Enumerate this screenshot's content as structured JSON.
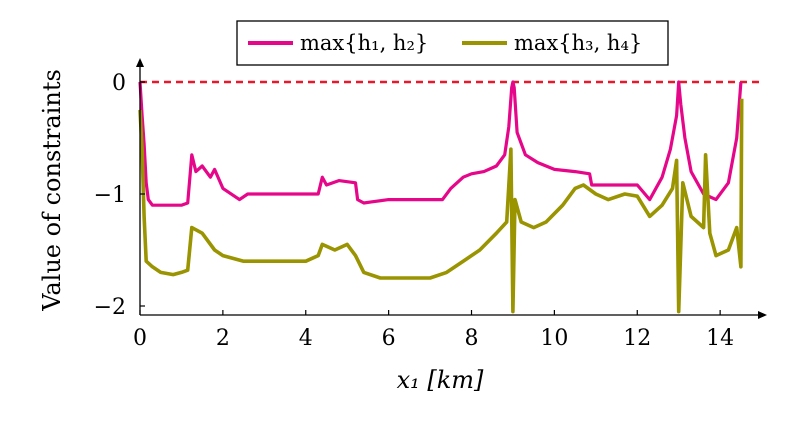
{
  "chart_data": {
    "type": "line",
    "xlabel": "x₁ [km]",
    "ylabel": "Value of constraints",
    "xlim": [
      0,
      15
    ],
    "ylim": [
      -2.05,
      0.12
    ],
    "xticks": [
      0,
      2,
      4,
      6,
      8,
      10,
      12,
      14
    ],
    "yticks": [
      0,
      -1,
      -2
    ],
    "ytick_labels": [
      "0",
      "−1",
      "−2"
    ],
    "legend_position": "top-center",
    "reference_line": {
      "y": 0,
      "style": "dashed",
      "color": "#e8192c"
    },
    "series": [
      {
        "name": "max{h₁, h₂}",
        "color": "#e6068a",
        "points": [
          [
            0.0,
            0.0
          ],
          [
            0.05,
            -0.3
          ],
          [
            0.1,
            -0.55
          ],
          [
            0.15,
            -0.9
          ],
          [
            0.2,
            -1.05
          ],
          [
            0.3,
            -1.1
          ],
          [
            0.5,
            -1.1
          ],
          [
            0.8,
            -1.1
          ],
          [
            1.0,
            -1.1
          ],
          [
            1.15,
            -1.08
          ],
          [
            1.25,
            -0.65
          ],
          [
            1.35,
            -0.8
          ],
          [
            1.5,
            -0.75
          ],
          [
            1.7,
            -0.85
          ],
          [
            1.8,
            -0.78
          ],
          [
            2.0,
            -0.95
          ],
          [
            2.4,
            -1.05
          ],
          [
            2.6,
            -1.0
          ],
          [
            3.0,
            -1.0
          ],
          [
            3.5,
            -1.0
          ],
          [
            4.0,
            -1.0
          ],
          [
            4.3,
            -1.0
          ],
          [
            4.4,
            -0.85
          ],
          [
            4.5,
            -0.92
          ],
          [
            4.8,
            -0.88
          ],
          [
            5.2,
            -0.9
          ],
          [
            5.25,
            -1.05
          ],
          [
            5.4,
            -1.08
          ],
          [
            5.6,
            -1.07
          ],
          [
            6.0,
            -1.05
          ],
          [
            6.5,
            -1.05
          ],
          [
            7.0,
            -1.05
          ],
          [
            7.3,
            -1.05
          ],
          [
            7.5,
            -0.95
          ],
          [
            7.8,
            -0.85
          ],
          [
            8.0,
            -0.82
          ],
          [
            8.3,
            -0.8
          ],
          [
            8.6,
            -0.75
          ],
          [
            8.8,
            -0.65
          ],
          [
            8.9,
            -0.4
          ],
          [
            8.97,
            -0.05
          ],
          [
            9.0,
            0.0
          ],
          [
            9.03,
            -0.05
          ],
          [
            9.1,
            -0.45
          ],
          [
            9.3,
            -0.65
          ],
          [
            9.6,
            -0.72
          ],
          [
            10.0,
            -0.78
          ],
          [
            10.5,
            -0.8
          ],
          [
            10.85,
            -0.82
          ],
          [
            10.9,
            -0.92
          ],
          [
            11.3,
            -0.92
          ],
          [
            11.5,
            -0.92
          ],
          [
            12.0,
            -0.92
          ],
          [
            12.3,
            -1.05
          ],
          [
            12.6,
            -0.85
          ],
          [
            12.8,
            -0.6
          ],
          [
            12.95,
            -0.3
          ],
          [
            13.0,
            0.0
          ],
          [
            13.05,
            -0.2
          ],
          [
            13.15,
            -0.5
          ],
          [
            13.3,
            -0.8
          ],
          [
            13.6,
            -1.0
          ],
          [
            13.9,
            -1.05
          ],
          [
            14.2,
            -0.9
          ],
          [
            14.4,
            -0.5
          ],
          [
            14.5,
            0.0
          ]
        ]
      },
      {
        "name": "max{h₃, h₄}",
        "color": "#999400",
        "points": [
          [
            0.0,
            -0.25
          ],
          [
            0.05,
            -0.6
          ],
          [
            0.1,
            -1.2
          ],
          [
            0.15,
            -1.6
          ],
          [
            0.3,
            -1.65
          ],
          [
            0.5,
            -1.7
          ],
          [
            0.8,
            -1.72
          ],
          [
            1.0,
            -1.7
          ],
          [
            1.15,
            -1.68
          ],
          [
            1.25,
            -1.3
          ],
          [
            1.5,
            -1.35
          ],
          [
            1.8,
            -1.5
          ],
          [
            2.0,
            -1.55
          ],
          [
            2.5,
            -1.6
          ],
          [
            3.0,
            -1.6
          ],
          [
            3.5,
            -1.6
          ],
          [
            4.0,
            -1.6
          ],
          [
            4.3,
            -1.55
          ],
          [
            4.4,
            -1.45
          ],
          [
            4.7,
            -1.5
          ],
          [
            5.0,
            -1.45
          ],
          [
            5.2,
            -1.55
          ],
          [
            5.4,
            -1.7
          ],
          [
            5.8,
            -1.75
          ],
          [
            6.3,
            -1.75
          ],
          [
            7.0,
            -1.75
          ],
          [
            7.4,
            -1.7
          ],
          [
            7.8,
            -1.6
          ],
          [
            8.2,
            -1.5
          ],
          [
            8.6,
            -1.35
          ],
          [
            8.85,
            -1.25
          ],
          [
            8.95,
            -0.6
          ],
          [
            9.0,
            -2.05
          ],
          [
            9.05,
            -1.05
          ],
          [
            9.2,
            -1.25
          ],
          [
            9.5,
            -1.3
          ],
          [
            9.8,
            -1.25
          ],
          [
            10.2,
            -1.1
          ],
          [
            10.5,
            -0.95
          ],
          [
            10.7,
            -0.92
          ],
          [
            11.0,
            -1.0
          ],
          [
            11.3,
            -1.05
          ],
          [
            11.7,
            -1.0
          ],
          [
            12.0,
            -1.02
          ],
          [
            12.3,
            -1.2
          ],
          [
            12.6,
            -1.1
          ],
          [
            12.85,
            -0.95
          ],
          [
            12.95,
            -0.7
          ],
          [
            13.0,
            -2.05
          ],
          [
            13.1,
            -0.9
          ],
          [
            13.3,
            -1.2
          ],
          [
            13.6,
            -1.3
          ],
          [
            13.65,
            -0.65
          ],
          [
            13.75,
            -1.35
          ],
          [
            13.9,
            -1.55
          ],
          [
            14.2,
            -1.5
          ],
          [
            14.4,
            -1.3
          ],
          [
            14.5,
            -1.65
          ],
          [
            14.52,
            -0.15
          ]
        ]
      }
    ]
  }
}
